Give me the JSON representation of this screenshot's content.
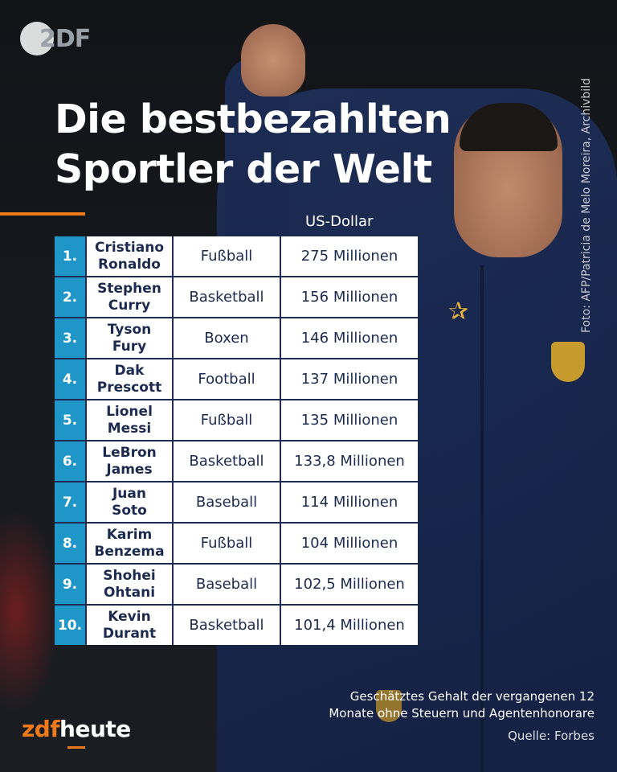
{
  "brand": {
    "top_logo": "2DF",
    "bottom_logo_part1": "zdf",
    "bottom_logo_part2": "heute",
    "accent": "#f07a1a",
    "table_rank_color": "#1f96c8",
    "text_dark": "#1b2a4e"
  },
  "title": {
    "line1": "Die bestbezahlten",
    "line2": "Sportler der Welt"
  },
  "unit_label": "US-Dollar",
  "photo_credit": "Foto: AFP/Patricia de Melo Moreira, Archivbild",
  "table": {
    "rows": [
      {
        "rank": "1.",
        "name_line1": "Cristiano",
        "name_line2": "Ronaldo",
        "sport": "Fußball",
        "salary": "275 Millionen"
      },
      {
        "rank": "2.",
        "name_line1": "Stephen",
        "name_line2": "Curry",
        "sport": "Basketball",
        "salary": "156 Millionen"
      },
      {
        "rank": "3.",
        "name_line1": "Tyson",
        "name_line2": "Fury",
        "sport": "Boxen",
        "salary": "146 Millionen"
      },
      {
        "rank": "4.",
        "name_line1": "Dak",
        "name_line2": "Prescott",
        "sport": "Football",
        "salary": "137 Millionen"
      },
      {
        "rank": "5.",
        "name_line1": "Lionel",
        "name_line2": "Messi",
        "sport": "Fußball",
        "salary": "135 Millionen"
      },
      {
        "rank": "6.",
        "name_line1": "LeBron",
        "name_line2": "James",
        "sport": "Basketball",
        "salary": "133,8 Millionen"
      },
      {
        "rank": "7.",
        "name_line1": "Juan",
        "name_line2": "Soto",
        "sport": "Baseball",
        "salary": "114 Millionen"
      },
      {
        "rank": "8.",
        "name_line1": "Karim",
        "name_line2": "Benzema",
        "sport": "Fußball",
        "salary": "104 Millionen"
      },
      {
        "rank": "9.",
        "name_line1": "Shohei",
        "name_line2": "Ohtani",
        "sport": "Baseball",
        "salary": "102,5 Millionen"
      },
      {
        "rank": "10.",
        "name_line1": "Kevin",
        "name_line2": "Durant",
        "sport": "Basketball",
        "salary": "101,4 Millionen"
      }
    ]
  },
  "footnote": {
    "line1": "Geschätztes Gehalt der vergangenen 12",
    "line2": "Monate ohne Steuern und Agentenhonorare"
  },
  "source": "Quelle: Forbes"
}
